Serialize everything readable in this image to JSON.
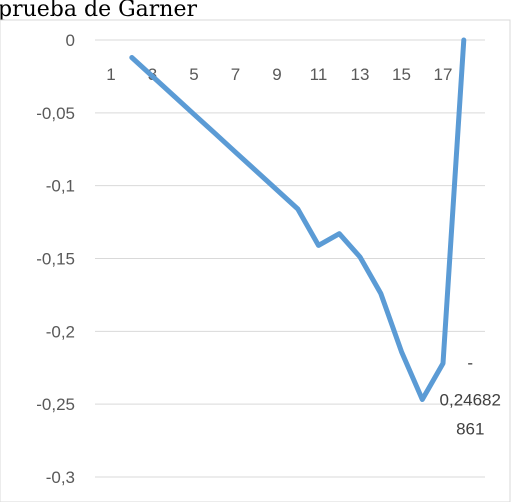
{
  "title": "prueba de Garner",
  "chart_data": {
    "type": "line",
    "title": "prueba de Garner",
    "xlabel": "",
    "ylabel": "",
    "ylim": [
      -0.3,
      0
    ],
    "yticks": [
      "0",
      "-0,05",
      "-0,1",
      "-0,15",
      "-0,2",
      "-0,25",
      "-0,3"
    ],
    "ytick_values": [
      0,
      -0.05,
      -0.1,
      -0.15,
      -0.2,
      -0.25,
      -0.3
    ],
    "xticks": [
      "1",
      "3",
      "5",
      "7",
      "9",
      "11",
      "13",
      "15",
      "17"
    ],
    "xtick_values": [
      1,
      3,
      5,
      7,
      9,
      11,
      13,
      15,
      17
    ],
    "x_axis_position": "y=0",
    "grid": "horizontal",
    "legend": "none",
    "series": [
      {
        "color": "#5B9BD5",
        "x": [
          2,
          3,
          4,
          5,
          6,
          7,
          8,
          9,
          10,
          11,
          12,
          13,
          14,
          15,
          16,
          17,
          18
        ],
        "values": [
          -0.012,
          -0.025,
          -0.038,
          -0.051,
          -0.064,
          -0.077,
          -0.09,
          -0.103,
          -0.116,
          -0.141,
          -0.133,
          -0.149,
          -0.174,
          -0.214,
          -0.2468,
          -0.222,
          0.0
        ]
      }
    ],
    "data_label": {
      "x": 16,
      "y": -0.24682861,
      "lines": [
        "-",
        "0,24682",
        "861"
      ]
    }
  }
}
